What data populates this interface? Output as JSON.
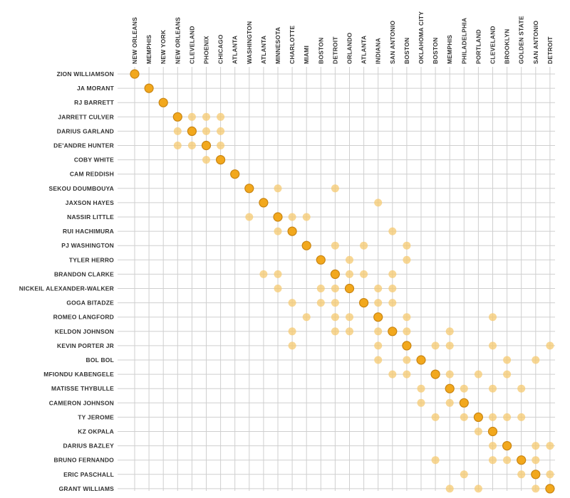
{
  "chart_data": {
    "type": "scatter",
    "title": "",
    "xlabel": "",
    "ylabel": "",
    "grid": true,
    "colors": {
      "actual": "#f2a81d",
      "actual_stroke": "#c98512",
      "projected": "#f5c970",
      "grid": "#cfcfcf",
      "text": "#333333"
    },
    "teams": [
      "NEW ORLEANS",
      "MEMPHIS",
      "NEW YORK",
      "NEW ORLEANS",
      "CLEVELAND",
      "PHOENIX",
      "CHICAGO",
      "ATLANTA",
      "WASHINGTON",
      "ATLANTA",
      "MINNESOTA",
      "CHARLOTTE",
      "MIAMI",
      "BOSTON",
      "DETROIT",
      "ORLANDO",
      "ATLANTA",
      "INDIANA",
      "SAN ANTONIO",
      "BOSTON",
      "OKLAHOMA CITY",
      "BOSTON",
      "MEMPHIS",
      "PHILADELPHIA",
      "PORTLAND",
      "CLEVELAND",
      "BROOKLYN",
      "GOLDEN STATE",
      "SAN ANTONIO",
      "DETROIT"
    ],
    "players": [
      "ZION WILLIAMSON",
      "JA MORANT",
      "RJ BARRETT",
      "JARRETT CULVER",
      "DARIUS GARLAND",
      "DE'ANDRE HUNTER",
      "COBY WHITE",
      "CAM REDDISH",
      "SEKOU DOUMBOUYA",
      "JAXSON HAYES",
      "NASSIR LITTLE",
      "RUI HACHIMURA",
      "PJ WASHINGTON",
      "TYLER HERRO",
      "BRANDON CLARKE",
      "NICKEIL ALEXANDER-WALKER",
      "GOGA BITADZE",
      "ROMEO LANGFORD",
      "KELDON JOHNSON",
      "KEVIN PORTER JR",
      "BOL BOL",
      "MFIONDU KABENGELE",
      "MATISSE THYBULLE",
      "CAMERON JOHNSON",
      "TY JEROME",
      "KZ OKPALA",
      "DARIUS BAZLEY",
      "BRUNO FERNANDO",
      "ERIC PASCHALL",
      "GRANT WILLIAMS"
    ],
    "actual": [
      0,
      1,
      2,
      3,
      4,
      5,
      6,
      7,
      8,
      9,
      10,
      11,
      12,
      13,
      14,
      15,
      16,
      17,
      18,
      19,
      20,
      21,
      22,
      23,
      24,
      25,
      26,
      27,
      28,
      29
    ],
    "projected": [
      [],
      [],
      [],
      [
        4,
        5,
        6
      ],
      [
        3,
        5,
        6
      ],
      [
        3,
        4,
        6
      ],
      [
        5
      ],
      [],
      [
        10,
        14
      ],
      [
        17
      ],
      [
        8,
        11,
        12
      ],
      [
        10,
        18
      ],
      [
        14,
        16,
        19
      ],
      [
        15,
        19
      ],
      [
        9,
        10,
        15,
        16,
        18
      ],
      [
        10,
        13,
        14,
        17,
        18
      ],
      [
        11,
        13,
        14,
        17,
        18
      ],
      [
        12,
        14,
        15,
        19,
        25
      ],
      [
        11,
        14,
        15,
        17,
        19,
        22
      ],
      [
        11,
        17,
        21,
        22,
        25,
        29
      ],
      [
        17,
        19,
        26,
        28
      ],
      [
        18,
        19,
        22,
        24,
        26
      ],
      [
        20,
        23,
        25,
        27
      ],
      [
        20,
        22
      ],
      [
        21,
        23,
        25,
        26,
        27
      ],
      [
        24
      ],
      [
        25,
        28,
        29
      ],
      [
        21,
        25,
        26,
        28
      ],
      [
        23,
        27,
        29
      ],
      [
        22,
        24,
        28
      ]
    ]
  }
}
